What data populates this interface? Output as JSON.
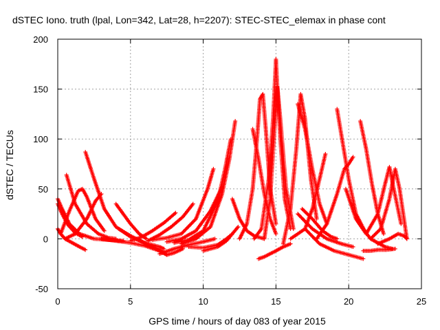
{
  "chart_data": {
    "type": "scatter",
    "title": "dSTEC Iono. truth (lpal, Lon=342, Lat=28, h=2207): STEC-STEC_elemax in phase cont",
    "xlabel": "GPS time / hours of day 083 of year 2015",
    "ylabel": "dSTEC  / TECUs",
    "xlim": [
      0,
      25
    ],
    "ylim": [
      -50,
      200
    ],
    "xticks": [
      0,
      5,
      10,
      15,
      20,
      25
    ],
    "yticks": [
      -50,
      0,
      50,
      100,
      150,
      200
    ],
    "xtick_labels": [
      "0",
      "5",
      "10",
      "15",
      "20",
      "25"
    ],
    "ytick_labels": [
      "-50",
      "0",
      "50",
      "100",
      "150",
      "200"
    ],
    "grid": true,
    "marker": "plus",
    "color": "#ff0000",
    "series": [
      {
        "x": [
          0,
          0.3,
          0.8,
          1.5,
          2.5,
          3.5,
          4.5
        ],
        "y": [
          40,
          30,
          15,
          5,
          0,
          -1,
          -2
        ]
      },
      {
        "x": [
          0,
          0.2,
          0.5,
          1.0,
          1.5,
          1.9
        ],
        "y": [
          10,
          5,
          0,
          -4,
          -8,
          -11
        ]
      },
      {
        "x": [
          0,
          0.3,
          0.7,
          1.2,
          1.7
        ],
        "y": [
          35,
          25,
          14,
          6,
          2
        ]
      },
      {
        "x": [
          0.2,
          0.8,
          1.4,
          1.7,
          2.0,
          2.6,
          3.2
        ],
        "y": [
          5,
          28,
          48,
          50,
          42,
          20,
          8
        ]
      },
      {
        "x": [
          0.6,
          1.2,
          2.0,
          2.8,
          3.5,
          4.0
        ],
        "y": [
          64,
          35,
          15,
          5,
          1,
          0
        ]
      },
      {
        "x": [
          1.9,
          2.5,
          3.2,
          4.0,
          5.0,
          6.0,
          7.0,
          7.3
        ],
        "y": [
          87,
          60,
          30,
          12,
          2,
          -4,
          -8,
          -10
        ]
      },
      {
        "x": [
          0.5,
          1.2,
          2.0,
          2.6,
          3.0
        ],
        "y": [
          0,
          5,
          20,
          38,
          45
        ]
      },
      {
        "x": [
          4.0,
          4.5,
          5.0,
          5.6,
          6.1
        ],
        "y": [
          35,
          25,
          15,
          5,
          0
        ]
      },
      {
        "x": [
          3.0,
          4.0,
          5.0,
          6.0,
          7.0,
          7.5
        ],
        "y": [
          0,
          -2,
          -4,
          -7,
          -12,
          -16
        ]
      },
      {
        "x": [
          4.2,
          5.0,
          5.8,
          6.5,
          7.2
        ],
        "y": [
          10,
          3,
          -3,
          -8,
          -13
        ]
      },
      {
        "x": [
          5.0,
          5.8,
          6.5,
          7.3,
          8.1
        ],
        "y": [
          -2,
          2,
          8,
          16,
          26
        ]
      },
      {
        "x": [
          6.0,
          7.0,
          7.5,
          8.0,
          8.6
        ],
        "y": [
          -5,
          -12,
          -16,
          -14,
          -10
        ]
      },
      {
        "x": [
          6.2,
          7.0,
          7.8,
          8.6,
          9.3
        ],
        "y": [
          -2,
          4,
          12,
          22,
          35
        ]
      },
      {
        "x": [
          7.0,
          8.0,
          9.0,
          10.0,
          10.8
        ],
        "y": [
          -15,
          -10,
          -6,
          -3,
          0
        ]
      },
      {
        "x": [
          6.5,
          7.5,
          8.5,
          9.5,
          10.3,
          10.7
        ],
        "y": [
          -1,
          1,
          5,
          20,
          50,
          70
        ]
      },
      {
        "x": [
          7.5,
          8.5,
          9.5,
          10.5,
          11.3
        ],
        "y": [
          -3,
          0,
          8,
          28,
          52
        ]
      },
      {
        "x": [
          8.0,
          9.0,
          10.0,
          11.0,
          11.5,
          11.9
        ],
        "y": [
          -4,
          -1,
          8,
          38,
          70,
          100
        ]
      },
      {
        "x": [
          8.5,
          9.5,
          10.5,
          11.3,
          11.8,
          12.2
        ],
        "y": [
          -5,
          0,
          12,
          45,
          80,
          118
        ]
      },
      {
        "x": [
          9.0,
          10.0,
          11.0,
          11.6,
          12.0
        ],
        "y": [
          -8,
          -9,
          -6,
          0,
          5
        ]
      },
      {
        "x": [
          10.0,
          11.0,
          11.6,
          12.0,
          12.4
        ],
        "y": [
          -12,
          -8,
          -2,
          5,
          12
        ]
      },
      {
        "x": [
          12.0,
          12.5,
          13.0,
          13.5,
          14.2
        ],
        "y": [
          40,
          20,
          8,
          3,
          0
        ]
      },
      {
        "x": [
          12.5,
          13.0,
          13.4,
          13.7,
          13.9,
          14.1,
          14.3,
          14.6,
          15.0
        ],
        "y": [
          0,
          15,
          50,
          100,
          140,
          145,
          110,
          50,
          15
        ]
      },
      {
        "x": [
          13.4,
          13.8,
          14.2,
          14.6,
          15.0
        ],
        "y": [
          110,
          80,
          45,
          20,
          5
        ]
      },
      {
        "x": [
          13.8,
          14.2,
          14.6,
          15.0,
          15.5,
          16.0
        ],
        "y": [
          -20,
          -18,
          -15,
          -12,
          -8,
          -5
        ]
      },
      {
        "x": [
          13.5,
          14.0,
          14.5,
          14.8,
          15.0,
          15.1,
          15.3,
          15.6,
          16.0
        ],
        "y": [
          0,
          10,
          60,
          120,
          180,
          150,
          100,
          40,
          10
        ]
      },
      {
        "x": [
          14.2,
          14.6,
          14.9,
          15.1,
          15.3,
          15.7,
          16.2
        ],
        "y": [
          0,
          40,
          110,
          152,
          120,
          50,
          10
        ]
      },
      {
        "x": [
          15.5,
          16.0,
          16.4,
          16.7,
          17.0,
          17.4,
          17.8
        ],
        "y": [
          -5,
          30,
          90,
          145,
          120,
          60,
          20
        ]
      },
      {
        "x": [
          16.5,
          17.0,
          17.5,
          18.0,
          18.5
        ],
        "y": [
          135,
          110,
          70,
          35,
          15
        ]
      },
      {
        "x": [
          16.0,
          17.0,
          17.5,
          18.0,
          18.4
        ],
        "y": [
          0,
          10,
          30,
          60,
          85
        ]
      },
      {
        "x": [
          16.5,
          17.5,
          18.5,
          19.5,
          20.3
        ],
        "y": [
          25,
          10,
          0,
          -5,
          -8
        ]
      },
      {
        "x": [
          17.0,
          18.0,
          19.0,
          20.0,
          21.0
        ],
        "y": [
          10,
          -5,
          -12,
          -16,
          -20
        ]
      },
      {
        "x": [
          16.8,
          17.5,
          18.2,
          18.8,
          19.2
        ],
        "y": [
          30,
          20,
          8,
          2,
          0
        ]
      },
      {
        "x": [
          19.2,
          19.6,
          20.0,
          20.5,
          21.2
        ],
        "y": [
          130,
          95,
          60,
          25,
          5
        ]
      },
      {
        "x": [
          17.8,
          18.5,
          19.2,
          19.7,
          20.0,
          20.3
        ],
        "y": [
          0,
          15,
          45,
          70,
          75,
          82
        ]
      },
      {
        "x": [
          19.8,
          20.5,
          21.5,
          22.5,
          23.0
        ],
        "y": [
          50,
          20,
          0,
          -8,
          -10
        ]
      },
      {
        "x": [
          20.8,
          21.2,
          21.6,
          22.0,
          22.4
        ],
        "y": [
          118,
          90,
          55,
          25,
          5
        ]
      },
      {
        "x": [
          20.5,
          21.2,
          22.0,
          22.5,
          22.8,
          23.1,
          23.6
        ],
        "y": [
          20,
          5,
          25,
          55,
          72,
          50,
          15
        ]
      },
      {
        "x": [
          21.0,
          21.5,
          22.0,
          22.6,
          23.2
        ],
        "y": [
          -12,
          -12,
          -11,
          -11,
          -10
        ]
      },
      {
        "x": [
          21.5,
          22.2,
          22.8,
          23.2,
          23.5,
          24.0
        ],
        "y": [
          0,
          10,
          40,
          70,
          50,
          0
        ]
      },
      {
        "x": [
          22.0,
          22.8,
          23.4,
          23.8,
          24.0
        ],
        "y": [
          -5,
          0,
          5,
          3,
          0
        ]
      }
    ]
  }
}
